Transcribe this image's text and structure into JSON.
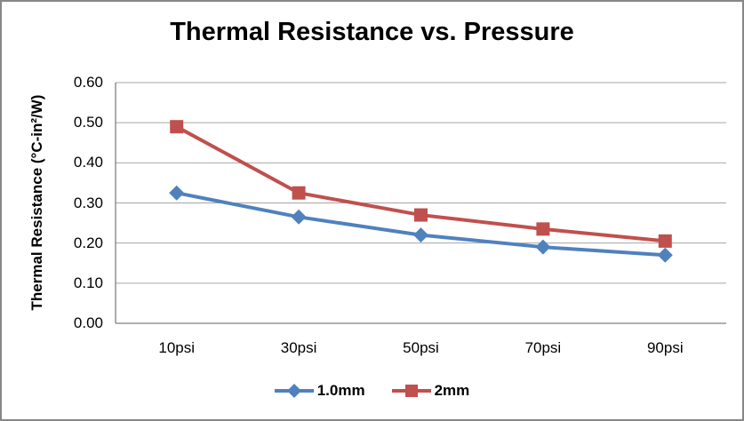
{
  "window": {
    "background_color": "#FFFFFF",
    "border_color": "#878787"
  },
  "chart_data": {
    "type": "line",
    "title": "Thermal Resistance vs. Pressure",
    "xlabel": "",
    "ylabel": "Thermal Resistance (°C-in²/W)",
    "categories": [
      "10psi",
      "30psi",
      "50psi",
      "70psi",
      "90psi"
    ],
    "series": [
      {
        "name": "1.0mm",
        "color": "#4F81BD",
        "marker": "diamond",
        "values": [
          0.325,
          0.265,
          0.22,
          0.19,
          0.17
        ]
      },
      {
        "name": "2mm",
        "color": "#C0504D",
        "marker": "square",
        "values": [
          0.49,
          0.325,
          0.27,
          0.235,
          0.205
        ]
      }
    ],
    "ylim": [
      0.0,
      0.6
    ],
    "ytick_labels": [
      "0.00",
      "0.10",
      "0.20",
      "0.30",
      "0.40",
      "0.50",
      "0.60"
    ],
    "grid": "horizontal",
    "gridline_color": "#A6A6A6",
    "axis_color": "#808080",
    "legend_position": "bottom"
  }
}
